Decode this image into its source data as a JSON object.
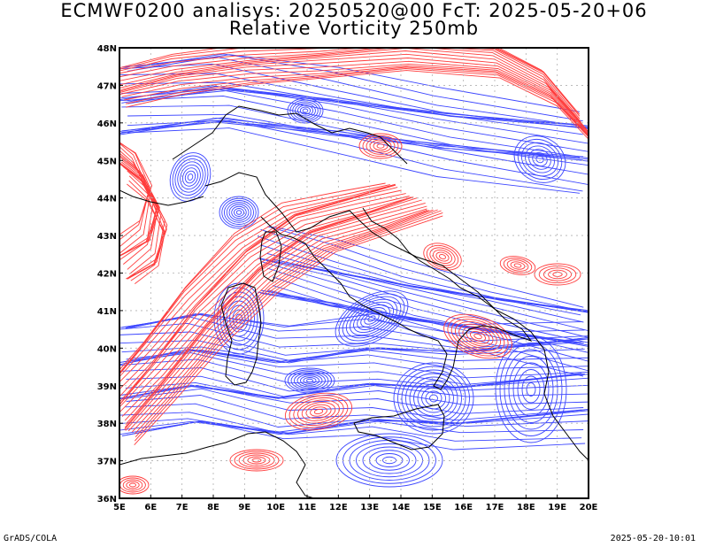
{
  "title": {
    "line1": "ECMWF0200 analisys: 20250520@00 FcT: 2025-05-20+06",
    "line2": "Relative Vorticity 250mb"
  },
  "footer": {
    "left": "GrADS/COLA",
    "right": "2025-05-20-10:01"
  },
  "map": {
    "lon_range": [
      5,
      20
    ],
    "lat_range": [
      36,
      48
    ],
    "x_tick_labels": [
      "5E",
      "6E",
      "7E",
      "8E",
      "9E",
      "10E",
      "11E",
      "12E",
      "13E",
      "14E",
      "15E",
      "16E",
      "17E",
      "18E",
      "19E",
      "20E"
    ],
    "y_tick_labels": [
      "36N",
      "37N",
      "38N",
      "39N",
      "40N",
      "41N",
      "42N",
      "43N",
      "44N",
      "45N",
      "46N",
      "47N",
      "48N"
    ],
    "contour_colors": {
      "positive": "#ff3c3c",
      "negative": "#3c46ff"
    },
    "grid_color": "#b0b0b0",
    "coastline_color": "#000000"
  }
}
